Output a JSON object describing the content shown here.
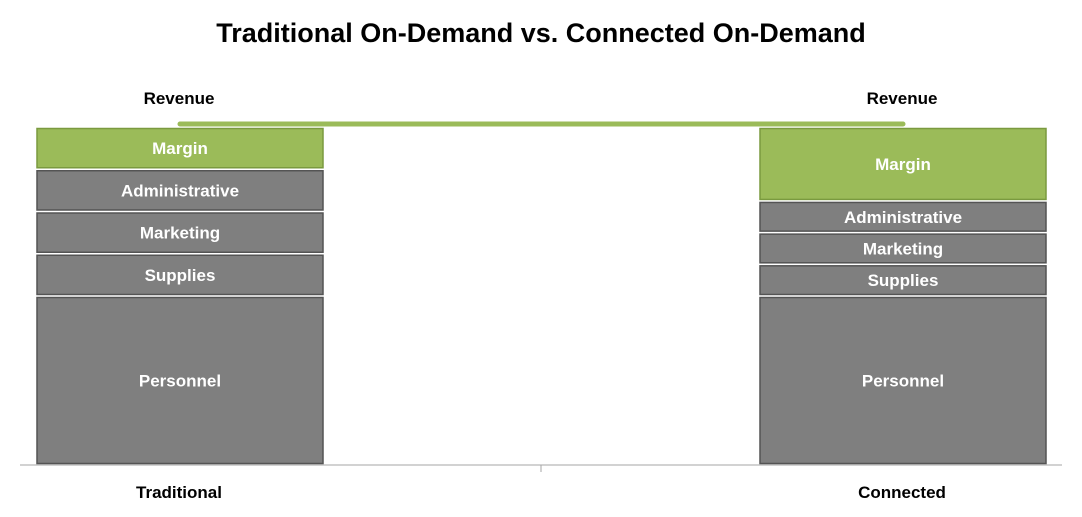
{
  "chart_data": {
    "type": "bar",
    "stacked": true,
    "title": "Traditional On-Demand vs. Connected On-Demand",
    "categories": [
      "Traditional",
      "Connected"
    ],
    "top_labels": [
      "Revenue",
      "Revenue"
    ],
    "series": [
      {
        "name": "Personnel",
        "values": [
          40,
          40
        ]
      },
      {
        "name": "Supplies",
        "values": [
          10,
          7.5
        ]
      },
      {
        "name": "Marketing",
        "values": [
          10,
          7.5
        ]
      },
      {
        "name": "Administrative",
        "values": [
          10,
          7.5
        ]
      },
      {
        "name": "Margin",
        "values": [
          10,
          17.5
        ]
      }
    ],
    "ylim": [
      0,
      80
    ],
    "revenue_total": 80,
    "legend": "none",
    "grid": false
  },
  "colors": {
    "cost": "#7f7f7f",
    "cost_stroke": "#545454",
    "margin": "#9bbb59",
    "margin_stroke": "#7a9a3f",
    "connector": "#9bbb59",
    "axis": "#a6a6a6"
  }
}
